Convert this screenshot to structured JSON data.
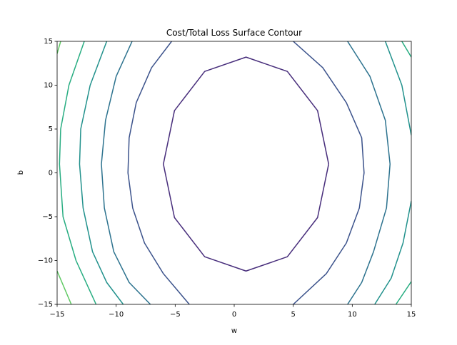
{
  "chart_data": {
    "type": "contour",
    "title": "Cost/Total Loss Surface Contour",
    "xlabel": "w",
    "ylabel": "b",
    "xlim": [
      -15,
      15
    ],
    "ylim": [
      -15,
      15
    ],
    "xticks": [
      {
        "value": -15,
        "label": "−15"
      },
      {
        "value": -10,
        "label": "−10"
      },
      {
        "value": -5,
        "label": "−5"
      },
      0,
      5,
      10,
      15
    ],
    "yticks": [
      {
        "value": -15,
        "label": "−15"
      },
      {
        "value": -10,
        "label": "−10"
      },
      {
        "value": -5,
        "label": "−5"
      },
      0,
      5,
      10,
      15
    ],
    "series": [
      {
        "color": "#472d7b",
        "x": [
          8,
          7.06,
          4.5,
          1,
          -2.5,
          -5.06,
          -6,
          -5.06,
          -2.5,
          1,
          4.5,
          7.06,
          8
        ],
        "y": [
          1,
          7.1,
          11.57,
          13.2,
          11.57,
          7.1,
          1,
          -5.1,
          -9.57,
          -11.2,
          -9.57,
          -5.1,
          1
        ]
      },
      {
        "color": "#3b528b",
        "x": [
          -5.3,
          -7.0,
          -8.3,
          -8.9,
          -9,
          -8.6,
          -7.6,
          -6,
          -3.8,
          null,
          5,
          7.5,
          9.5,
          10.8,
          11,
          10.6,
          9.5,
          7.8,
          5
        ],
        "y": [
          15,
          12,
          8,
          4,
          0,
          -4,
          -8,
          -11.5,
          -15,
          null,
          15,
          12,
          8,
          4,
          0,
          -4,
          -8,
          -11.5,
          -15
        ]
      },
      {
        "color": "#2c728e",
        "x": [
          -8.65,
          -10,
          -10.9,
          -11.25,
          -11,
          -10.2,
          -8.9,
          -7.1,
          null,
          9.6,
          11.5,
          12.8,
          13.2,
          12.9,
          11.8,
          10.8,
          9.6
        ],
        "y": [
          15,
          11,
          6,
          1,
          -4,
          -9,
          -12.5,
          -15,
          null,
          15,
          11,
          6,
          1,
          -4,
          -9,
          -12.5,
          -15
        ]
      },
      {
        "color": "#21918c",
        "x": [
          -10.8,
          -12.2,
          -13.0,
          -13.1,
          -12.8,
          -12,
          -10.8,
          -9.4,
          null,
          12.8,
          14.2,
          15,
          null,
          15,
          14.3,
          13.3,
          11.9
        ],
        "y": [
          15,
          10,
          5,
          1,
          -4,
          -9,
          -12.5,
          -15,
          null,
          15,
          10,
          4.3,
          null,
          -3.2,
          -8,
          -12,
          -15
        ]
      },
      {
        "color": "#27ad81",
        "x": [
          -12.7,
          -14,
          -14.7,
          -14.8,
          -14.5,
          -13.4,
          -11.7,
          null,
          14.2,
          15,
          null,
          15,
          13.7
        ],
        "y": [
          15,
          10,
          5,
          1,
          -5,
          -10,
          -15,
          null,
          15,
          13.2,
          null,
          -12.4,
          -15
        ]
      },
      {
        "color": "#5ec962",
        "x": [
          -15,
          -14.7,
          null,
          -15,
          -13.8
        ],
        "y": [
          13.6,
          15,
          null,
          -11.2,
          -15
        ]
      }
    ]
  }
}
